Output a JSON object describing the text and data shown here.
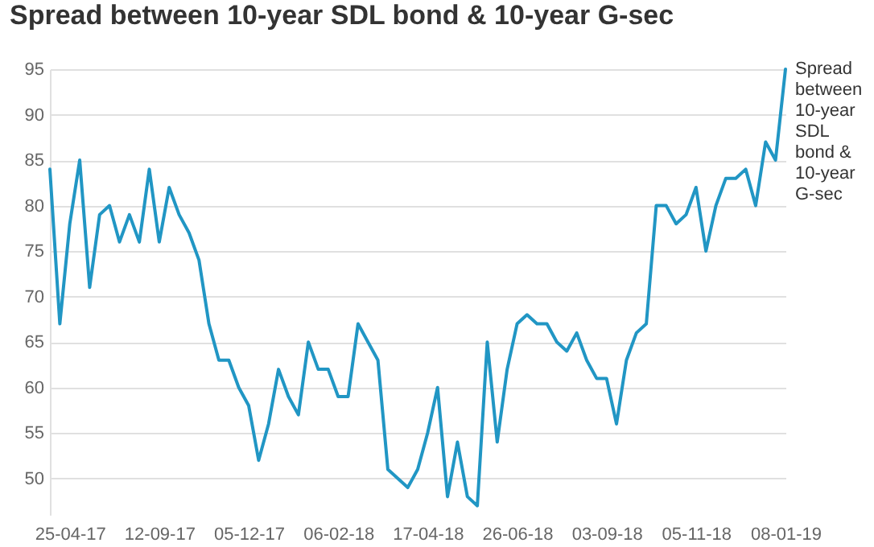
{
  "chart_data": {
    "type": "line",
    "title": "Spread between 10-year SDL bond & 10-year G-sec",
    "categories": [
      null,
      null,
      "25-04-17",
      null,
      null,
      null,
      null,
      null,
      null,
      null,
      null,
      "12-09-17",
      null,
      null,
      null,
      null,
      null,
      null,
      null,
      null,
      "05-12-17",
      null,
      null,
      null,
      null,
      null,
      null,
      null,
      null,
      "06-02-18",
      null,
      null,
      null,
      null,
      null,
      null,
      null,
      null,
      "17-04-18",
      null,
      null,
      null,
      null,
      null,
      null,
      null,
      null,
      "26-06-18",
      null,
      null,
      null,
      null,
      null,
      null,
      null,
      null,
      "03-09-18",
      null,
      null,
      null,
      null,
      null,
      null,
      null,
      null,
      "05-11-18",
      null,
      null,
      null,
      null,
      null,
      null,
      null,
      null,
      "08-01-19"
    ],
    "series": [
      {
        "name": "Spread between 10-year SDL bond & 10-year G-sec",
        "color": "#2196c4",
        "values": [
          84,
          67,
          78,
          85,
          71,
          79,
          80,
          76,
          79,
          76,
          84,
          76,
          82,
          79,
          77,
          74,
          67,
          63,
          63,
          60,
          58,
          52,
          56,
          62,
          59,
          57,
          65,
          62,
          62,
          59,
          59,
          67,
          65,
          63,
          51,
          50,
          49,
          51,
          55,
          60,
          48,
          54,
          48,
          47,
          65,
          54,
          62,
          67,
          68,
          67,
          67,
          65,
          64,
          66,
          63,
          61,
          61,
          56,
          63,
          66,
          67,
          80,
          80,
          78,
          79,
          82,
          75,
          80,
          83,
          83,
          84,
          80,
          87,
          85,
          95
        ]
      }
    ],
    "ylim": [
      46,
      95
    ],
    "yticks": [
      50,
      55,
      60,
      65,
      70,
      75,
      80,
      85,
      90,
      95
    ],
    "grid": "y",
    "legend": false
  }
}
